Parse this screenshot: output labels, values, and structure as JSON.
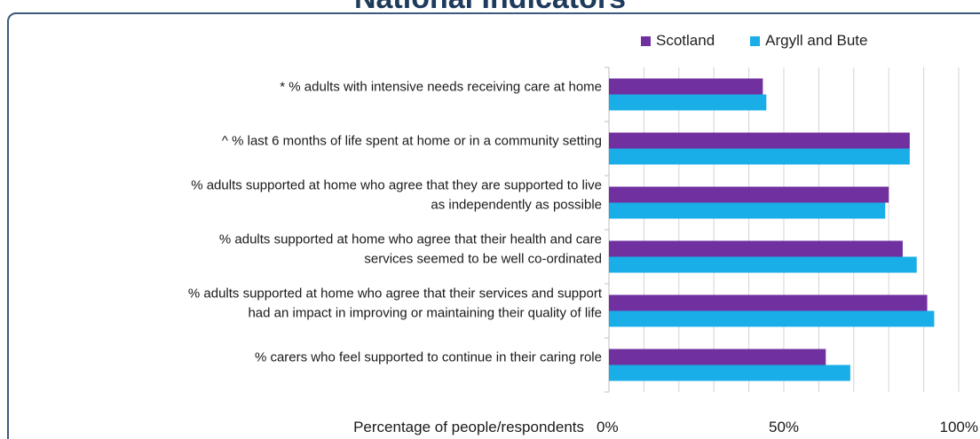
{
  "title": "National Indicators",
  "legend": [
    {
      "name": "Scotland",
      "color": "#7030a0"
    },
    {
      "name": "Argyll and Bute",
      "color": "#19aee8"
    }
  ],
  "chart_data": {
    "type": "bar",
    "orientation": "horizontal",
    "title": "National Indicators",
    "xlabel": "Percentage of people/respondents",
    "ylabel": "",
    "xlim": [
      0,
      100
    ],
    "x_ticks": [
      "0%",
      "50%",
      "100%"
    ],
    "x_tick_values": [
      0,
      50,
      100
    ],
    "grid": true,
    "legend_position": "top-right",
    "categories": [
      [
        "* % adults with intensive needs receiving care at home"
      ],
      [
        "^ % last 6 months of life spent at home or in a community setting"
      ],
      [
        "% adults supported at home who agree that they are supported to live",
        "as independently as possible"
      ],
      [
        "% adults supported at home who agree that their health and care",
        "services seemed to be well co-ordinated"
      ],
      [
        "%  adults supported at home who agree that their services and support",
        "had an impact in improving or maintaining their quality of life"
      ],
      [
        "%  carers who feel supported to continue in their caring role"
      ]
    ],
    "series": [
      {
        "name": "Scotland",
        "color": "#7030a0",
        "values": [
          44,
          86,
          80,
          84,
          91,
          62
        ]
      },
      {
        "name": "Argyll and Bute",
        "color": "#19aee8",
        "values": [
          45,
          86,
          79,
          88,
          93,
          69
        ]
      }
    ]
  }
}
